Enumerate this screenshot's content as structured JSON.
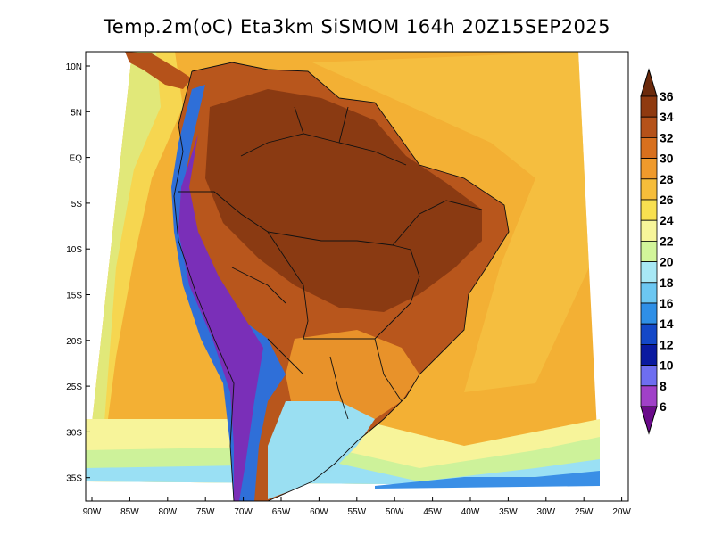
{
  "title": "Temp.2m(oC) Eta3km SiSMOM 164h 20Z15SEP2025",
  "lat_ticks": [
    "10N",
    "5N",
    "EQ",
    "5S",
    "10S",
    "15S",
    "20S",
    "25S",
    "30S",
    "35S"
  ],
  "lon_ticks": [
    "90W",
    "85W",
    "80W",
    "75W",
    "70W",
    "65W",
    "60W",
    "55W",
    "50W",
    "45W",
    "40W",
    "35W",
    "30W",
    "25W",
    "20W"
  ],
  "colorbar": {
    "labels": [
      "36",
      "34",
      "32",
      "30",
      "28",
      "26",
      "24",
      "22",
      "20",
      "18",
      "16",
      "14",
      "12",
      "10",
      "8",
      "6"
    ],
    "colors": [
      "#6b2a0c",
      "#8f3a10",
      "#b5521a",
      "#d8701e",
      "#ef9a2c",
      "#f6bd3a",
      "#f8e050",
      "#f7f59a",
      "#d2f59a",
      "#a8e8f5",
      "#6cc7f2",
      "#2f8fe6",
      "#1448c8",
      "#0a1aa0",
      "#6e6ef0",
      "#a040c8",
      "#6a0a8a"
    ]
  }
}
